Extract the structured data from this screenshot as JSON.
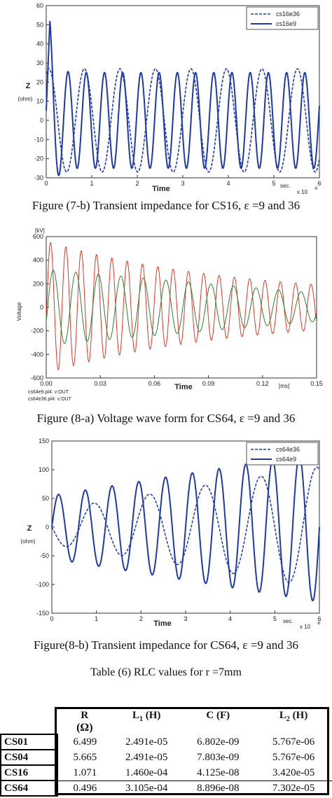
{
  "figures": [
    {
      "caption": "Figure (7-b) Transient impedance for CS16, ε =9 and 36",
      "chart_data": {
        "type": "line",
        "x_range": [
          0,
          6
        ],
        "y_range": [
          -30,
          60
        ],
        "xticks": [
          "0",
          "1",
          "2",
          "3",
          "4",
          "5",
          "6"
        ],
        "yticks": [
          "60",
          "50",
          "40",
          "30",
          "20",
          "10",
          "0",
          "-10",
          "-20",
          "-30"
        ],
        "ylabel": "Z",
        "yunit": "(ohm)",
        "xlabel": "Time",
        "xunit": "sec.",
        "xexp": "x 10",
        "xexp_power": "-6",
        "series": [
          {
            "name": "cs16e36",
            "style": "dashed",
            "color": "#1f3aa8",
            "period": 0.78,
            "amplitude": 27,
            "peak": 28
          },
          {
            "name": "cs16e9",
            "style": "solid",
            "color": "#1f3aa8",
            "period": 0.4,
            "amplitude": 25,
            "peak": 52
          }
        ]
      }
    },
    {
      "caption": "Figure (8-a) Voltage wave form for CS64, ε =9 and 36",
      "chart_data": {
        "type": "line",
        "x_range": [
          0,
          0.15
        ],
        "y_range": [
          -600,
          600
        ],
        "xticks": [
          "0.00",
          "0.03",
          "0.06",
          "0.09",
          "0.12",
          "0.15"
        ],
        "yticks": [
          "600",
          "400",
          "200",
          "0",
          "-200",
          "-400",
          "-600"
        ],
        "yunit": "[kV]",
        "ylabel": "Voltage",
        "xlabel": "Time",
        "xunit": "[ms]",
        "series": [
          {
            "name": "cs64e9.pl4: v:OUT",
            "color": "#2e7d32",
            "period": 0.0125,
            "amplitude": 320,
            "decay_to": 120
          },
          {
            "name": "cs64e36.pl4: v:OUT",
            "color": "#d83a2a",
            "period": 0.0085,
            "amplitude": 560,
            "decay_to": 140
          }
        ]
      }
    },
    {
      "caption": "Figure(8-b) Transient impedance for CS64, ε =9 and 36",
      "chart_data": {
        "type": "line",
        "x_range": [
          0,
          6
        ],
        "y_range": [
          -150,
          150
        ],
        "xticks": [
          "0",
          "1",
          "2",
          "3",
          "4",
          "5",
          "6"
        ],
        "yticks": [
          "150",
          "100",
          "50",
          "0",
          "-50",
          "-100",
          "-150"
        ],
        "ylabel": "Z",
        "yunit": "(ohm)",
        "xlabel": "Time",
        "xunit": "sec.",
        "xexp": "x 10",
        "xexp_power": "-6",
        "series": [
          {
            "name": "cs64e36",
            "style": "dashed",
            "color": "#1f3aa8",
            "period": 1.25,
            "amplitude_start": 30,
            "amplitude_end": 105
          },
          {
            "name": "cs64e9",
            "style": "solid",
            "color": "#1f3aa8",
            "period": 0.6,
            "amplitude_start": 55,
            "amplitude_end": 130
          }
        ]
      }
    }
  ],
  "table": {
    "title": "Table (6) RLC values for r =7mm",
    "headers": [
      "R",
      "L1 (H)",
      "C (F)",
      "L2 (H)"
    ],
    "r_unit": "(Ω)",
    "rows": [
      {
        "name": "CS01",
        "R": "6.499",
        "L1": "2.491e-05",
        "C": "6.802e-09",
        "L2": "5.767e-06"
      },
      {
        "name": "CS04",
        "R": "5.665",
        "L1": "2.491e-05",
        "C": "7.803e-09",
        "L2": "5.767e-06"
      },
      {
        "name": "CS16",
        "R": "1.071",
        "L1": "1.460e-04",
        "C": "4.125e-08",
        "L2": "3.420e-05"
      },
      {
        "name": "CS64",
        "R": "0.496",
        "L1": "3.105e-04",
        "C": "8.896e-08",
        "L2": "7.302e-05"
      }
    ]
  }
}
